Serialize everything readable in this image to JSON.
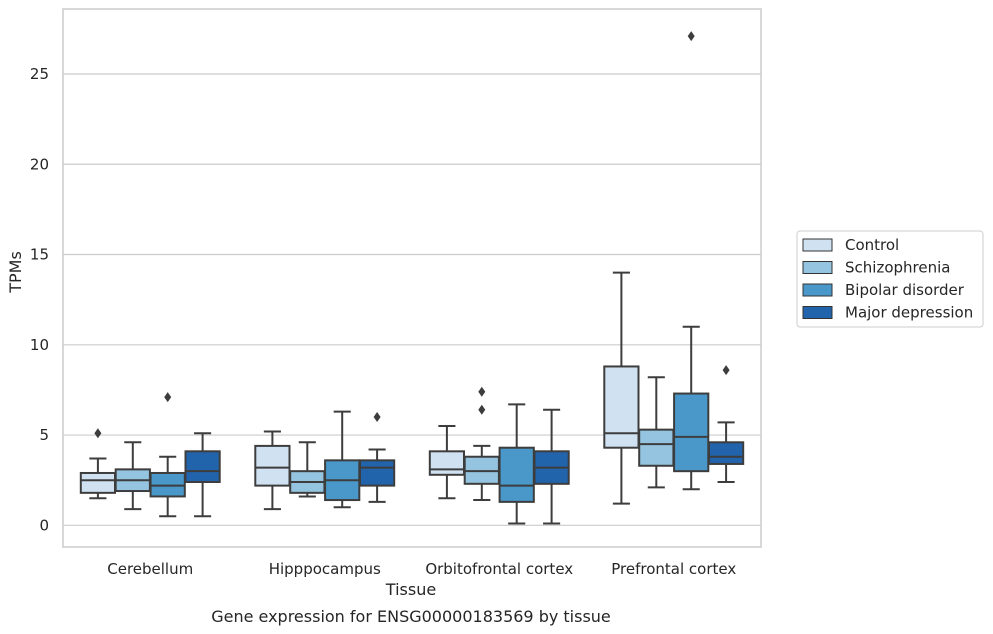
{
  "chart_data": {
    "type": "box",
    "xlabel": "Tissue",
    "ylabel": "TPMs",
    "caption": "Gene expression for ENSG00000183569 by tissue",
    "ylim": [
      -1.2,
      28.6
    ],
    "yticks": [
      0,
      5,
      10,
      15,
      20,
      25
    ],
    "grid": true,
    "legend_position": "right",
    "categories": [
      "Cerebellum",
      "Hipppocampus",
      "Orbitofrontal cortex",
      "Prefrontal cortex"
    ],
    "series": [
      {
        "name": "Control",
        "color": "#d0e1f2",
        "boxes": [
          {
            "whislo": 1.5,
            "q1": 1.8,
            "med": 2.5,
            "q3": 2.9,
            "whishi": 3.7,
            "fliers": [
              5.1
            ]
          },
          {
            "whislo": 0.9,
            "q1": 2.2,
            "med": 3.2,
            "q3": 4.4,
            "whishi": 5.2,
            "fliers": []
          },
          {
            "whislo": 1.5,
            "q1": 2.8,
            "med": 3.1,
            "q3": 4.1,
            "whishi": 5.5,
            "fliers": []
          },
          {
            "whislo": 1.2,
            "q1": 4.3,
            "med": 5.1,
            "q3": 8.8,
            "whishi": 14.0,
            "fliers": []
          }
        ]
      },
      {
        "name": "Schizophrenia",
        "color": "#94c4df",
        "boxes": [
          {
            "whislo": 0.9,
            "q1": 1.9,
            "med": 2.5,
            "q3": 3.1,
            "whishi": 4.6,
            "fliers": []
          },
          {
            "whislo": 1.6,
            "q1": 1.8,
            "med": 2.4,
            "q3": 3.0,
            "whishi": 4.6,
            "fliers": []
          },
          {
            "whislo": 1.4,
            "q1": 2.3,
            "med": 3.0,
            "q3": 3.8,
            "whishi": 4.4,
            "fliers": [
              6.4,
              7.4
            ]
          },
          {
            "whislo": 2.1,
            "q1": 3.3,
            "med": 4.5,
            "q3": 5.3,
            "whishi": 8.2,
            "fliers": []
          }
        ]
      },
      {
        "name": "Bipolar disorder",
        "color": "#4a98c9",
        "boxes": [
          {
            "whislo": 0.5,
            "q1": 1.6,
            "med": 2.2,
            "q3": 2.9,
            "whishi": 3.8,
            "fliers": [
              7.1
            ]
          },
          {
            "whislo": 1.0,
            "q1": 1.4,
            "med": 2.5,
            "q3": 3.6,
            "whishi": 6.3,
            "fliers": []
          },
          {
            "whislo": 0.1,
            "q1": 1.3,
            "med": 2.2,
            "q3": 4.3,
            "whishi": 6.7,
            "fliers": []
          },
          {
            "whislo": 2.0,
            "q1": 3.0,
            "med": 4.9,
            "q3": 7.3,
            "whishi": 11.0,
            "fliers": [
              27.1
            ]
          }
        ]
      },
      {
        "name": "Major depression",
        "color": "#2164ab",
        "boxes": [
          {
            "whislo": 0.5,
            "q1": 2.4,
            "med": 3.0,
            "q3": 4.1,
            "whishi": 5.1,
            "fliers": []
          },
          {
            "whislo": 1.3,
            "q1": 2.2,
            "med": 3.2,
            "q3": 3.6,
            "whishi": 4.2,
            "fliers": [
              6.0
            ]
          },
          {
            "whislo": 0.1,
            "q1": 2.3,
            "med": 3.2,
            "q3": 4.1,
            "whishi": 6.4,
            "fliers": []
          },
          {
            "whislo": 2.4,
            "q1": 3.4,
            "med": 3.8,
            "q3": 4.6,
            "whishi": 5.7,
            "fliers": [
              8.6
            ]
          }
        ]
      }
    ]
  }
}
